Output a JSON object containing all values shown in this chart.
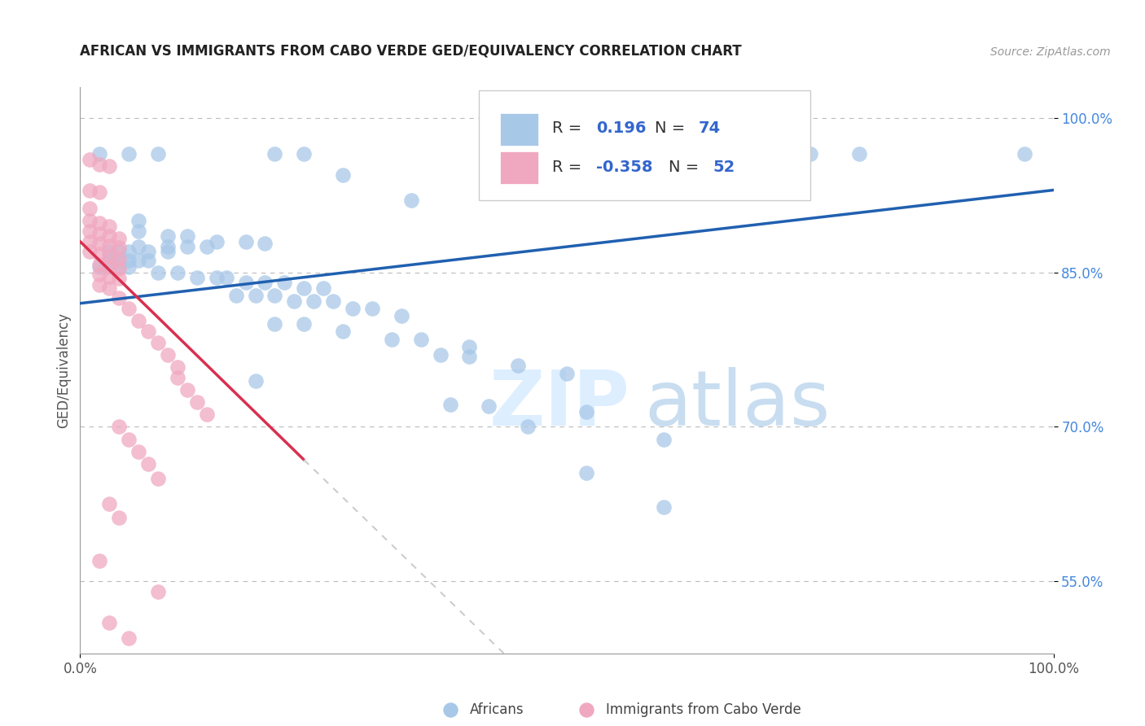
{
  "title": "AFRICAN VS IMMIGRANTS FROM CABO VERDE GED/EQUIVALENCY CORRELATION CHART",
  "source": "Source: ZipAtlas.com",
  "ylabel": "GED/Equivalency",
  "xlim": [
    0.0,
    1.0
  ],
  "ylim": [
    0.48,
    1.03
  ],
  "x_tick_labels": [
    "0.0%",
    "100.0%"
  ],
  "y_tick_labels": [
    "55.0%",
    "70.0%",
    "85.0%",
    "100.0%"
  ],
  "y_tick_positions": [
    0.55,
    0.7,
    0.85,
    1.0
  ],
  "color_blue": "#a8c8e8",
  "color_pink": "#f0a8c0",
  "line_blue": "#2060b0",
  "line_pink": "#d83050",
  "line_pink_dash": "#cccccc",
  "blue_points": [
    [
      0.02,
      0.965
    ],
    [
      0.05,
      0.965
    ],
    [
      0.08,
      0.965
    ],
    [
      0.2,
      0.965
    ],
    [
      0.23,
      0.965
    ],
    [
      0.75,
      0.965
    ],
    [
      0.8,
      0.965
    ],
    [
      0.97,
      0.965
    ],
    [
      0.27,
      0.945
    ],
    [
      0.34,
      0.92
    ],
    [
      0.06,
      0.9
    ],
    [
      0.06,
      0.89
    ],
    [
      0.09,
      0.885
    ],
    [
      0.11,
      0.885
    ],
    [
      0.14,
      0.88
    ],
    [
      0.17,
      0.88
    ],
    [
      0.19,
      0.878
    ],
    [
      0.06,
      0.875
    ],
    [
      0.09,
      0.875
    ],
    [
      0.11,
      0.875
    ],
    [
      0.13,
      0.875
    ],
    [
      0.03,
      0.87
    ],
    [
      0.04,
      0.87
    ],
    [
      0.05,
      0.87
    ],
    [
      0.07,
      0.87
    ],
    [
      0.09,
      0.87
    ],
    [
      0.03,
      0.862
    ],
    [
      0.04,
      0.862
    ],
    [
      0.05,
      0.862
    ],
    [
      0.06,
      0.862
    ],
    [
      0.07,
      0.862
    ],
    [
      0.02,
      0.855
    ],
    [
      0.03,
      0.855
    ],
    [
      0.04,
      0.855
    ],
    [
      0.05,
      0.855
    ],
    [
      0.08,
      0.85
    ],
    [
      0.1,
      0.85
    ],
    [
      0.12,
      0.845
    ],
    [
      0.14,
      0.845
    ],
    [
      0.15,
      0.845
    ],
    [
      0.17,
      0.84
    ],
    [
      0.19,
      0.84
    ],
    [
      0.21,
      0.84
    ],
    [
      0.23,
      0.835
    ],
    [
      0.25,
      0.835
    ],
    [
      0.16,
      0.828
    ],
    [
      0.18,
      0.828
    ],
    [
      0.2,
      0.828
    ],
    [
      0.22,
      0.822
    ],
    [
      0.24,
      0.822
    ],
    [
      0.26,
      0.822
    ],
    [
      0.28,
      0.815
    ],
    [
      0.3,
      0.815
    ],
    [
      0.33,
      0.808
    ],
    [
      0.2,
      0.8
    ],
    [
      0.23,
      0.8
    ],
    [
      0.27,
      0.793
    ],
    [
      0.32,
      0.785
    ],
    [
      0.35,
      0.785
    ],
    [
      0.4,
      0.778
    ],
    [
      0.37,
      0.77
    ],
    [
      0.4,
      0.768
    ],
    [
      0.45,
      0.76
    ],
    [
      0.5,
      0.752
    ],
    [
      0.18,
      0.745
    ],
    [
      0.38,
      0.722
    ],
    [
      0.42,
      0.72
    ],
    [
      0.52,
      0.715
    ],
    [
      0.46,
      0.7
    ],
    [
      0.6,
      0.688
    ],
    [
      0.52,
      0.655
    ],
    [
      0.6,
      0.622
    ]
  ],
  "pink_points": [
    [
      0.01,
      0.96
    ],
    [
      0.02,
      0.955
    ],
    [
      0.03,
      0.953
    ],
    [
      0.01,
      0.93
    ],
    [
      0.02,
      0.928
    ],
    [
      0.01,
      0.912
    ],
    [
      0.01,
      0.9
    ],
    [
      0.02,
      0.898
    ],
    [
      0.03,
      0.895
    ],
    [
      0.01,
      0.89
    ],
    [
      0.02,
      0.888
    ],
    [
      0.03,
      0.885
    ],
    [
      0.04,
      0.883
    ],
    [
      0.01,
      0.88
    ],
    [
      0.02,
      0.878
    ],
    [
      0.03,
      0.876
    ],
    [
      0.04,
      0.874
    ],
    [
      0.01,
      0.87
    ],
    [
      0.02,
      0.868
    ],
    [
      0.03,
      0.866
    ],
    [
      0.04,
      0.863
    ],
    [
      0.02,
      0.858
    ],
    [
      0.03,
      0.856
    ],
    [
      0.04,
      0.854
    ],
    [
      0.02,
      0.848
    ],
    [
      0.03,
      0.846
    ],
    [
      0.04,
      0.844
    ],
    [
      0.02,
      0.838
    ],
    [
      0.03,
      0.835
    ],
    [
      0.04,
      0.825
    ],
    [
      0.05,
      0.815
    ],
    [
      0.06,
      0.803
    ],
    [
      0.07,
      0.793
    ],
    [
      0.08,
      0.782
    ],
    [
      0.09,
      0.77
    ],
    [
      0.1,
      0.758
    ],
    [
      0.1,
      0.748
    ],
    [
      0.11,
      0.736
    ],
    [
      0.12,
      0.724
    ],
    [
      0.13,
      0.712
    ],
    [
      0.04,
      0.7
    ],
    [
      0.05,
      0.688
    ],
    [
      0.06,
      0.676
    ],
    [
      0.07,
      0.664
    ],
    [
      0.08,
      0.65
    ],
    [
      0.03,
      0.625
    ],
    [
      0.04,
      0.612
    ],
    [
      0.02,
      0.57
    ],
    [
      0.08,
      0.54
    ],
    [
      0.03,
      0.51
    ],
    [
      0.05,
      0.495
    ]
  ],
  "blue_line_solid": [
    [
      0.0,
      0.82
    ],
    [
      1.0,
      0.93
    ]
  ],
  "pink_line_solid": [
    [
      0.0,
      0.88
    ],
    [
      0.23,
      0.668
    ]
  ],
  "pink_line_dash": [
    [
      0.23,
      0.668
    ],
    [
      0.55,
      0.375
    ]
  ]
}
